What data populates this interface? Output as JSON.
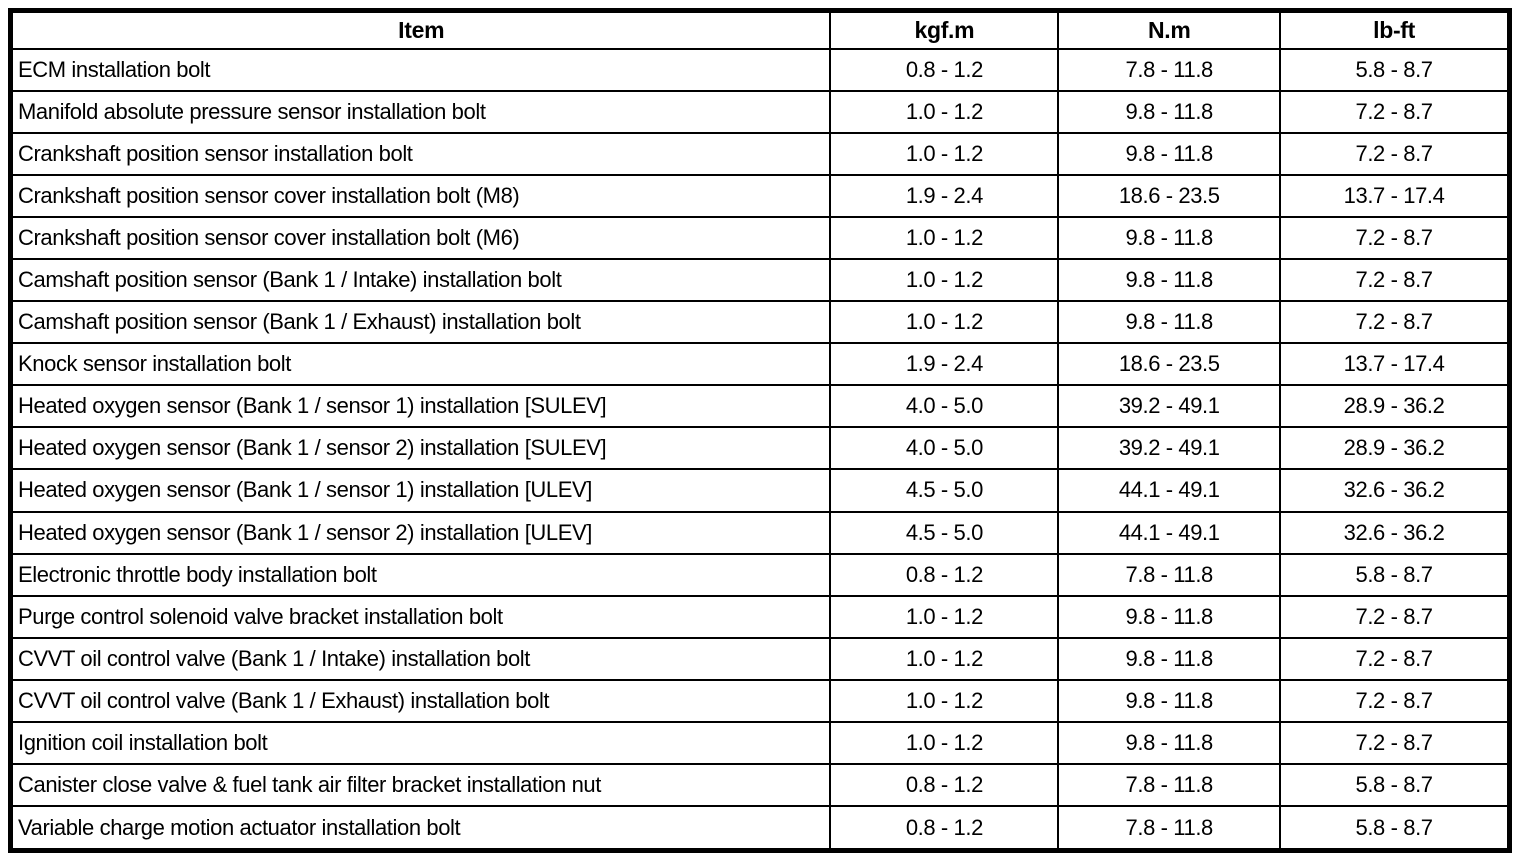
{
  "table": {
    "columns": [
      {
        "label": "Item"
      },
      {
        "label": "kgf.m"
      },
      {
        "label": "N.m"
      },
      {
        "label": "lb-ft"
      }
    ],
    "rows": [
      {
        "cells": [
          "ECM installation bolt",
          "0.8 - 1.2",
          "7.8 - 11.8",
          "5.8 - 8.7"
        ]
      },
      {
        "cells": [
          "Manifold absolute pressure sensor installation bolt",
          "1.0 - 1.2",
          "9.8 - 11.8",
          "7.2 - 8.7"
        ]
      },
      {
        "cells": [
          "Crankshaft position sensor installation bolt",
          "1.0 - 1.2",
          "9.8 - 11.8",
          "7.2 - 8.7"
        ]
      },
      {
        "cells": [
          "Crankshaft position sensor cover installation bolt (M8)",
          "1.9 - 2.4",
          "18.6 - 23.5",
          "13.7 - 17.4"
        ]
      },
      {
        "cells": [
          "Crankshaft position sensor cover installation bolt (M6)",
          "1.0 - 1.2",
          "9.8 - 11.8",
          "7.2 - 8.7"
        ]
      },
      {
        "cells": [
          "Camshaft position sensor (Bank 1 / Intake) installation bolt",
          "1.0 - 1.2",
          "9.8 - 11.8",
          "7.2 - 8.7"
        ]
      },
      {
        "cells": [
          "Camshaft position sensor (Bank 1 / Exhaust) installation bolt",
          "1.0 - 1.2",
          "9.8 - 11.8",
          "7.2 - 8.7"
        ]
      },
      {
        "cells": [
          "Knock sensor installation bolt",
          "1.9 - 2.4",
          "18.6 - 23.5",
          "13.7 - 17.4"
        ]
      },
      {
        "cells": [
          "Heated oxygen sensor (Bank 1 / sensor 1) installation [SULEV]",
          "4.0 - 5.0",
          "39.2 - 49.1",
          "28.9 - 36.2"
        ]
      },
      {
        "cells": [
          "Heated oxygen sensor (Bank 1 / sensor 2) installation [SULEV]",
          "4.0 - 5.0",
          "39.2 - 49.1",
          "28.9 - 36.2"
        ]
      },
      {
        "cells": [
          "Heated oxygen sensor (Bank 1 / sensor 1) installation [ULEV]",
          "4.5 - 5.0",
          "44.1 - 49.1",
          "32.6 - 36.2"
        ]
      },
      {
        "cells": [
          "Heated oxygen sensor (Bank 1 / sensor 2) installation [ULEV]",
          "4.5 - 5.0",
          "44.1 - 49.1",
          "32.6 - 36.2"
        ]
      },
      {
        "cells": [
          "Electronic throttle body installation bolt",
          "0.8 - 1.2",
          "7.8 - 11.8",
          "5.8 - 8.7"
        ]
      },
      {
        "cells": [
          "Purge control solenoid valve bracket installation bolt",
          "1.0 - 1.2",
          "9.8 - 11.8",
          "7.2 - 8.7"
        ]
      },
      {
        "cells": [
          "CVVT oil control valve (Bank 1 / Intake) installation bolt",
          "1.0 - 1.2",
          "9.8 - 11.8",
          "7.2 - 8.7"
        ]
      },
      {
        "cells": [
          "CVVT oil control valve (Bank 1 / Exhaust) installation bolt",
          "1.0 - 1.2",
          "9.8 - 11.8",
          "7.2 - 8.7"
        ]
      },
      {
        "cells": [
          "Ignition coil installation bolt",
          "1.0 - 1.2",
          "9.8 - 11.8",
          "7.2 - 8.7"
        ]
      },
      {
        "cells": [
          "Canister close valve & fuel tank air filter bracket installation nut",
          "0.8 - 1.2",
          "7.8 - 11.8",
          "5.8 - 8.7"
        ]
      },
      {
        "cells": [
          "Variable charge motion actuator installation bolt",
          "0.8 - 1.2",
          "7.8 - 11.8",
          "5.8 - 8.7"
        ]
      }
    ],
    "colors": {
      "text": "#000000",
      "border": "#000000",
      "background": "#ffffff"
    }
  }
}
